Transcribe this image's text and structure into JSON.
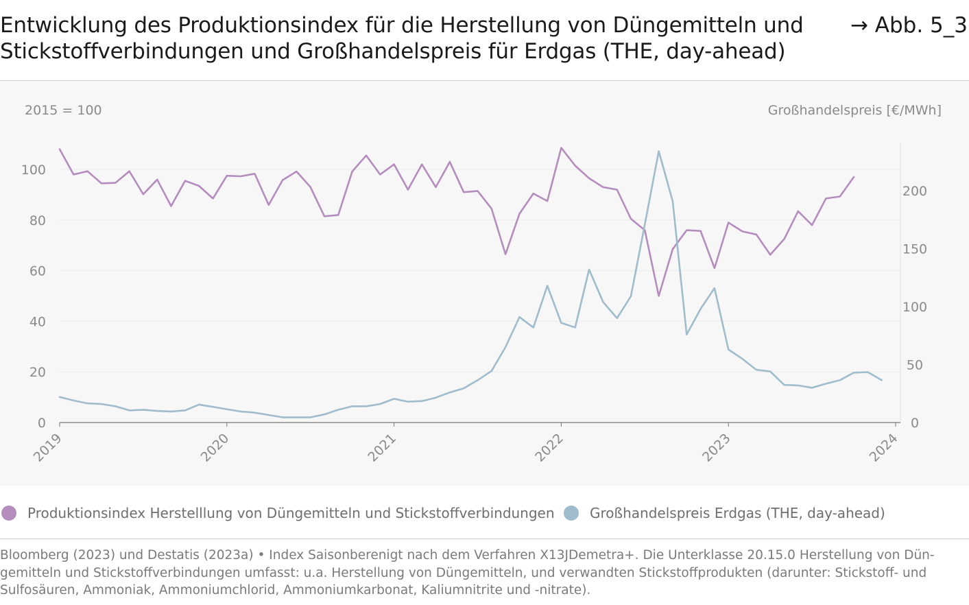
{
  "header": {
    "title": "Entwicklung des Produktionsindex für die Herstellung von Düngemitteln und Stickstoffverbindungen und Großhandelspreis für Erdgas (THE, day-ahead)",
    "figure_ref": "→ Abb. 5_3"
  },
  "chart_data": {
    "type": "line",
    "title": "Entwicklung des Produktionsindex für die Herstellung von Düngemitteln und Stickstoffverbindungen und Großhandelspreis für Erdgas (THE, day-ahead)",
    "x_ticks": [
      "2019",
      "2020",
      "2021",
      "2022",
      "2023",
      "2024"
    ],
    "x_range": [
      "2019-01",
      "2024-01"
    ],
    "y_left": {
      "label": "2015 = 100",
      "ylim": [
        0,
        110
      ],
      "ticks": [
        "0",
        "20",
        "40",
        "60",
        "80",
        "100"
      ],
      "tick_values": [
        0,
        20,
        40,
        60,
        80,
        100
      ]
    },
    "y_right": {
      "label": "Großhandelspreis [€/MWh]",
      "ylim": [
        0,
        240
      ],
      "ticks": [
        "0",
        "50",
        "100",
        "150",
        "200"
      ],
      "tick_values": [
        0,
        50,
        100,
        150,
        200
      ]
    },
    "grid": true,
    "legend_position": "bottom",
    "series": [
      {
        "name": "Produktionsindex Herstelllung von Düngemitteln und Stickstoffverbindungen",
        "axis": "left",
        "color": "#b48cbd",
        "start": "2019-01",
        "values": [
          108,
          98,
          99.3,
          94.5,
          94.7,
          99.3,
          90.2,
          96,
          85.5,
          95.5,
          93.5,
          88.5,
          97.5,
          97.3,
          98.3,
          86,
          95.8,
          99.2,
          93,
          81.5,
          82,
          99.2,
          105.5,
          98,
          102,
          92,
          102,
          93,
          103,
          91,
          91.5,
          84.5,
          66.5,
          82.5,
          90.5,
          87.5,
          108.5,
          101.5,
          96.5,
          93,
          92,
          80.5,
          76,
          50,
          68.5,
          76,
          75.7,
          61,
          79,
          75.5,
          74.3,
          66.3,
          72.5,
          83.5,
          78,
          88.5,
          89.3,
          97
        ]
      },
      {
        "name": "Großhandelspreis Erdgas (THE, day-ahead)",
        "axis": "right",
        "color": "#9fbccd",
        "start": "2019-01",
        "values": [
          22,
          19,
          16.5,
          16,
          14,
          10.5,
          11,
          10,
          9.5,
          10.5,
          15.5,
          13.5,
          11.5,
          9.5,
          8.5,
          6.5,
          4.5,
          4.5,
          4.5,
          7,
          11,
          14,
          14,
          16,
          20.5,
          18,
          18.5,
          21.5,
          26,
          29.5,
          36.5,
          44.5,
          65,
          91,
          82,
          118,
          86,
          82,
          132,
          104,
          90,
          109,
          171,
          234,
          191,
          76,
          98,
          116,
          63,
          55,
          45.5,
          44,
          32.5,
          32,
          30,
          33.5,
          36.5,
          43,
          43.5,
          36.5
        ]
      }
    ]
  },
  "legend": {
    "items": [
      {
        "label": "Produktionsindex Herstelllung von Düngemitteln und Stickstoffverbindungen",
        "color": "#b48cbd"
      },
      {
        "label": "Großhandelspreis Erdgas (THE, day-ahead)",
        "color": "#9fbccd"
      }
    ]
  },
  "footnote": {
    "lines": [
      "Bloomberg (2023) und Destatis (2023a) • Index Saisonberenigt nach dem Verfahren X13JDemetra+. Die Unterklasse 20.15.0 Herstellung von Dün-",
      "gemitteln und Stickstoffverbindungen umfasst: u.a. Herstellung von Düngemitteln, und verwandten Stickstoffprodukten (darunter: Stickstoff- und",
      "Sulfosäuren, Ammoniak, Ammoniumchlorid, Ammoniumkarbonat, Kaliumnitrite und -nitrate)."
    ]
  }
}
